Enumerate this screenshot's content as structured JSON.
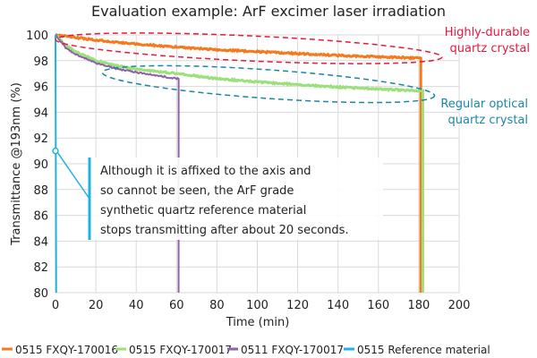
{
  "chart_data": {
    "type": "line",
    "title": "Evaluation example: ArF excimer laser irradiation",
    "xlabel": "Time (min)",
    "ylabel": "Transmittance  @193nm (%)",
    "xlim": [
      0,
      200
    ],
    "ylim": [
      80,
      100
    ],
    "xticks": [
      0,
      20,
      40,
      60,
      80,
      100,
      120,
      140,
      160,
      180,
      200
    ],
    "yticks": [
      80,
      82,
      84,
      86,
      88,
      90,
      92,
      94,
      96,
      98,
      100
    ],
    "grid": true,
    "legend_position": "bottom",
    "series": [
      {
        "name": "0515 FXQY-170016",
        "color": "#f47a20",
        "points": [
          [
            0,
            100
          ],
          [
            20,
            99.6
          ],
          [
            40,
            99.3
          ],
          [
            60,
            99.05
          ],
          [
            80,
            98.85
          ],
          [
            100,
            98.7
          ],
          [
            120,
            98.55
          ],
          [
            140,
            98.4
          ],
          [
            160,
            98.3
          ],
          [
            181,
            98.2
          ],
          [
            181,
            80
          ]
        ]
      },
      {
        "name": "0515 FXQY-170017",
        "color": "#9be07a",
        "points": [
          [
            0,
            100
          ],
          [
            5,
            99.2
          ],
          [
            10,
            98.7
          ],
          [
            20,
            98.0
          ],
          [
            30,
            97.6
          ],
          [
            40,
            97.35
          ],
          [
            60,
            97.0
          ],
          [
            80,
            96.6
          ],
          [
            100,
            96.35
          ],
          [
            120,
            96.15
          ],
          [
            140,
            95.95
          ],
          [
            160,
            95.8
          ],
          [
            182,
            95.65
          ],
          [
            182,
            80
          ]
        ]
      },
      {
        "name": "0511 FXQY-170017",
        "color": "#8e62a6",
        "points": [
          [
            0,
            100
          ],
          [
            5,
            99.0
          ],
          [
            10,
            98.5
          ],
          [
            20,
            97.8
          ],
          [
            30,
            97.4
          ],
          [
            40,
            97.1
          ],
          [
            50,
            96.85
          ],
          [
            61,
            96.6
          ],
          [
            61,
            80
          ]
        ]
      },
      {
        "name": "0515 Reference material",
        "color": "#1fb2e0",
        "points": [
          [
            0,
            100
          ],
          [
            0.33,
            80
          ]
        ]
      }
    ],
    "annotations": [
      {
        "text": "Highly-durable\nquartz crystal",
        "color": "#e8173c"
      },
      {
        "text": "Regular optical\nquartz crystal",
        "color": "#1a86a8"
      },
      {
        "text": "Although it is affixed to the axis and\nso cannot be seen, the ArF grade\nsynthetic quartz reference material\nstops transmitting after about 20 seconds.",
        "color": "#1fb2e0",
        "point": [
          0,
          91
        ]
      }
    ]
  }
}
